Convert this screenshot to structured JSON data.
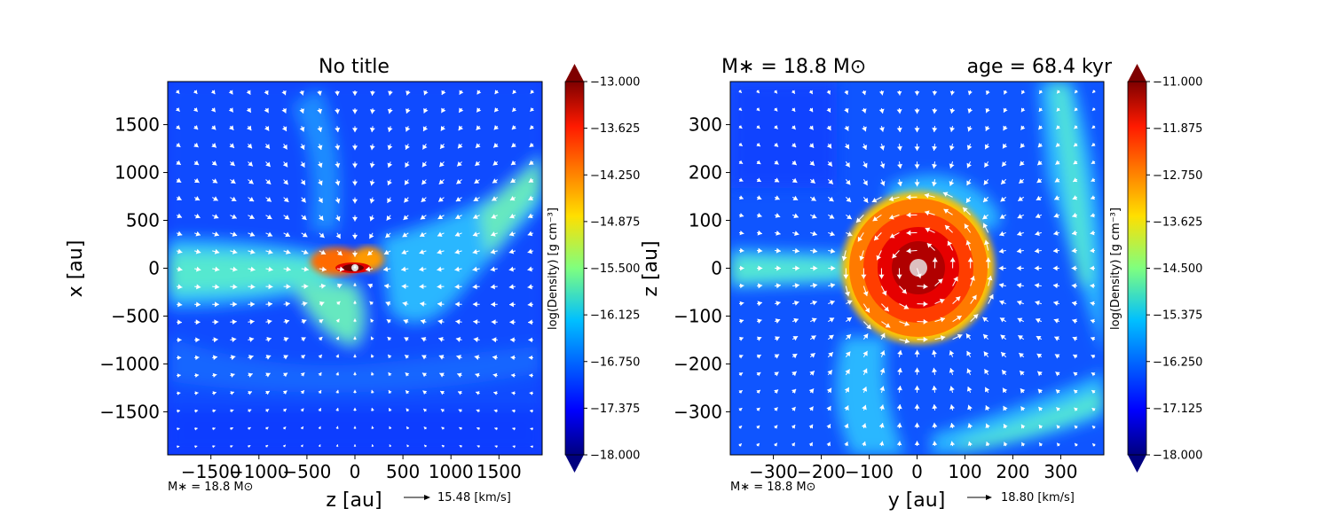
{
  "chart_data": [
    {
      "type": "heatmap",
      "title": "No title",
      "xlabel": "z [au]",
      "ylabel": "x [au]",
      "xlim": [
        -1950,
        1950
      ],
      "ylim": [
        -1950,
        1950
      ],
      "xticks": [
        -1500,
        -1000,
        -500,
        0,
        500,
        1000,
        1500
      ],
      "yticks": [
        -1500,
        -1000,
        -500,
        0,
        500,
        1000,
        1500
      ],
      "xtick_labels": [
        "−1500",
        "−1000",
        "−500",
        "0",
        "500",
        "1000",
        "1500"
      ],
      "ytick_labels": [
        "−1500",
        "−1000",
        "−500",
        "0",
        "500",
        "1000",
        "1500"
      ],
      "colorbar": {
        "label": "log(Density) [g cm⁻³]",
        "range": [
          -18.0,
          -13.0
        ],
        "ticks": [
          -13.0,
          -13.625,
          -14.25,
          -14.875,
          -15.5,
          -16.125,
          -16.75,
          -17.375,
          -18.0
        ],
        "tick_labels": [
          "−13.000",
          "−13.625",
          "−14.250",
          "−14.875",
          "−15.500",
          "−16.125",
          "−16.750",
          "−17.375",
          "−18.000"
        ]
      },
      "mass_annotation": "M∗ = 18.8 M⊙",
      "vector_scale_label": "15.48 [km/s]"
    },
    {
      "type": "heatmap",
      "title_left": "M∗ = 18.8 M⊙",
      "title_right": "age = 68.4 kyr",
      "xlabel": "y [au]",
      "ylabel": "z [au]",
      "xlim": [
        -390,
        390
      ],
      "ylim": [
        -390,
        390
      ],
      "xticks": [
        -300,
        -200,
        -100,
        0,
        100,
        200,
        300
      ],
      "yticks": [
        -300,
        -200,
        -100,
        0,
        100,
        200,
        300
      ],
      "xtick_labels": [
        "−300",
        "−200",
        "−100",
        "0",
        "100",
        "200",
        "300"
      ],
      "ytick_labels": [
        "−300",
        "−200",
        "−100",
        "0",
        "100",
        "200",
        "300"
      ],
      "colorbar": {
        "label": "log(Density) [g cm⁻³]",
        "range": [
          -18.0,
          -11.0
        ],
        "ticks": [
          -11.0,
          -11.875,
          -12.75,
          -13.625,
          -14.5,
          -15.375,
          -16.25,
          -17.125,
          -18.0
        ],
        "tick_labels": [
          "−11.000",
          "−11.875",
          "−12.750",
          "−13.625",
          "−14.500",
          "−15.375",
          "−16.250",
          "−17.125",
          "−18.000"
        ]
      },
      "mass_annotation": "M∗ = 18.8 M⊙",
      "vector_scale_label": "18.80 [km/s]"
    }
  ]
}
